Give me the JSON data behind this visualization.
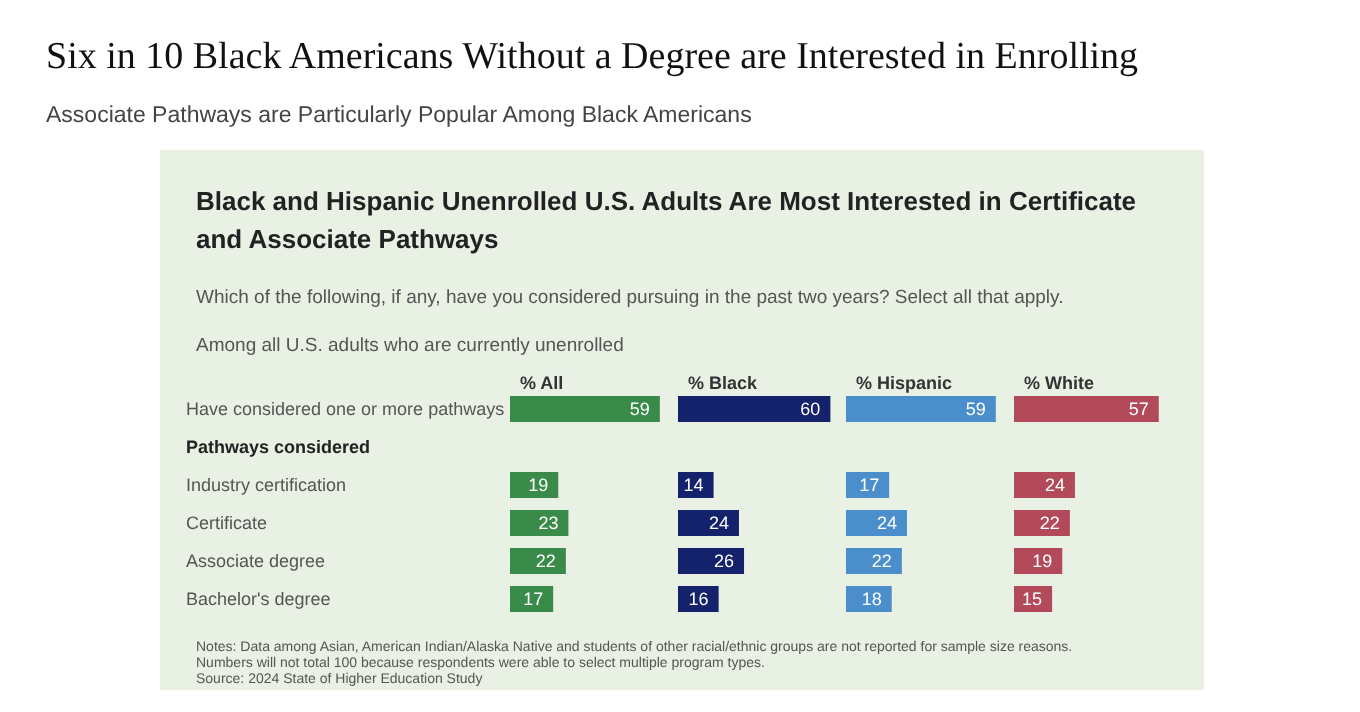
{
  "chart_data": [
    {
      "type": "bar",
      "orientation": "horizontal",
      "title": "Six in 10 Black Americans Without a Degree are Interested in Enrolling",
      "subtitle": "Associate Pathways are Particularly Popular Among Black Americans",
      "annotations": [
        "Black and Hispanic Unenrolled U.S. Adults Are Most Interested in Certificate and Associate Pathways",
        "Which of the following, if any, have you considered pursuing in the past two years? Select all that apply.",
        "Among all U.S. adults who are currently unenrolled",
        "Notes: Data among Asian, American Indian/Alaska Native and students of other racial/ethnic groups are not reported for sample size reasons.\nNumbers will not total 100 because respondents were able to select multiple program types.",
        "Source: 2024 State of Higher Education Study"
      ],
      "categories": [
        "Have considered one or more pathways",
        "Pathways considered",
        "Industry certification",
        "Certificate",
        "Associate degree",
        "Bachelor's degree"
      ],
      "series": [
        {
          "name": "% All",
          "color": "#3a8a4a",
          "values": [
            59,
            null,
            19,
            23,
            22,
            17
          ]
        }
      ],
      "data_labels": true,
      "tick_labels": "y",
      "legend": false
    },
    {
      "type": "bar",
      "orientation": "horizontal",
      "categories": [
        null,
        null,
        null,
        null,
        null,
        null
      ],
      "series": [
        {
          "name": "% Black",
          "color": "#14216b",
          "values": [
            60,
            null,
            14,
            24,
            26,
            16
          ]
        }
      ],
      "data_labels": true,
      "tick_labels": "y",
      "legend": false
    },
    {
      "type": "bar",
      "orientation": "horizontal",
      "categories": [
        null,
        null,
        null,
        null,
        null,
        null
      ],
      "series": [
        {
          "name": "% Hispanic",
          "color": "#4a8fcb",
          "values": [
            59,
            null,
            17,
            24,
            22,
            18
          ]
        }
      ],
      "data_labels": true,
      "tick_labels": "y",
      "legend": false
    },
    {
      "type": "bar",
      "orientation": "horizontal",
      "categories": [
        null,
        null,
        null,
        null,
        null,
        null
      ],
      "series": [
        {
          "name": "% White",
          "color": "#b24a5a",
          "values": [
            57,
            null,
            24,
            22,
            19,
            15
          ]
        }
      ],
      "data_labels": true,
      "tick_labels": "y",
      "legend": false
    }
  ]
}
